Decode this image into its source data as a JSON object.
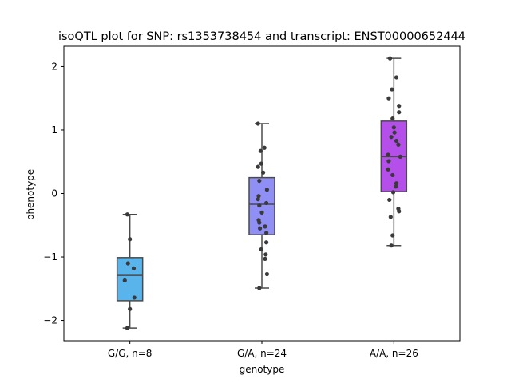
{
  "chart_data": {
    "type": "box",
    "title": "isoQTL plot for SNP: rs1353738454 and transcript: ENST00000652444",
    "xlabel": "genotype",
    "ylabel": "phenotype",
    "ylim": [
      -2.32,
      2.32
    ],
    "yticks": [
      -2,
      -1,
      0,
      1,
      2
    ],
    "ytick_labels": [
      "−2",
      "−1",
      "0",
      "1",
      "2"
    ],
    "grid": false,
    "groups": [
      {
        "label": "G/G, n=8",
        "color": "#5ab4ec",
        "box": {
          "whisker_low": -2.12,
          "q1": -1.69,
          "median": -1.29,
          "q3": -1.01,
          "whisker_high": -0.33
        },
        "points": [
          {
            "x": -0.2,
            "y": -0.33
          },
          {
            "x": 0.0,
            "y": -0.72
          },
          {
            "x": -0.15,
            "y": -1.1
          },
          {
            "x": 0.3,
            "y": -1.18
          },
          {
            "x": -0.4,
            "y": -1.37
          },
          {
            "x": 0.35,
            "y": -1.64
          },
          {
            "x": 0.0,
            "y": -1.82
          },
          {
            "x": -0.2,
            "y": -2.12
          }
        ]
      },
      {
        "label": "G/A, n=24",
        "color": "#8f8ff5",
        "box": {
          "whisker_low": -1.49,
          "q1": -0.65,
          "median": -0.17,
          "q3": 0.25,
          "whisker_high": 1.1
        },
        "points": [
          {
            "x": -0.3,
            "y": 1.1
          },
          {
            "x": 0.2,
            "y": 0.72
          },
          {
            "x": -0.1,
            "y": 0.67
          },
          {
            "x": -0.05,
            "y": 0.47
          },
          {
            "x": -0.3,
            "y": 0.42
          },
          {
            "x": 0.1,
            "y": 0.33
          },
          {
            "x": -0.2,
            "y": 0.2
          },
          {
            "x": 0.4,
            "y": 0.06
          },
          {
            "x": -0.25,
            "y": -0.04
          },
          {
            "x": -0.3,
            "y": -0.09
          },
          {
            "x": -0.2,
            "y": -0.19
          },
          {
            "x": 0.35,
            "y": -0.15
          },
          {
            "x": -0.25,
            "y": -0.42
          },
          {
            "x": -0.2,
            "y": -0.46
          },
          {
            "x": 0.25,
            "y": -0.52
          },
          {
            "x": -0.15,
            "y": -0.55
          },
          {
            "x": 0.35,
            "y": -0.62
          },
          {
            "x": 0.35,
            "y": -0.77
          },
          {
            "x": -0.05,
            "y": -0.88
          },
          {
            "x": 0.3,
            "y": -0.96
          },
          {
            "x": 0.25,
            "y": -1.03
          },
          {
            "x": 0.4,
            "y": -1.27
          },
          {
            "x": -0.2,
            "y": -1.49
          },
          {
            "x": 0.0,
            "y": -0.3
          }
        ]
      },
      {
        "label": "A/A, n=26",
        "color": "#b44fea",
        "box": {
          "whisker_low": -0.82,
          "q1": 0.03,
          "median": 0.58,
          "q3": 1.14,
          "whisker_high": 2.13
        },
        "points": [
          {
            "x": -0.3,
            "y": 2.13
          },
          {
            "x": 0.2,
            "y": 1.83
          },
          {
            "x": -0.15,
            "y": 1.64
          },
          {
            "x": -0.4,
            "y": 1.5
          },
          {
            "x": 0.4,
            "y": 1.38
          },
          {
            "x": 0.4,
            "y": 1.28
          },
          {
            "x": -0.1,
            "y": 1.18
          },
          {
            "x": 0.0,
            "y": 1.04
          },
          {
            "x": 0.05,
            "y": 0.96
          },
          {
            "x": -0.2,
            "y": 0.89
          },
          {
            "x": 0.2,
            "y": 0.83
          },
          {
            "x": 0.35,
            "y": 0.77
          },
          {
            "x": -0.45,
            "y": 0.61
          },
          {
            "x": 0.5,
            "y": 0.58
          },
          {
            "x": -0.4,
            "y": 0.51
          },
          {
            "x": -0.45,
            "y": 0.38
          },
          {
            "x": -0.1,
            "y": 0.29
          },
          {
            "x": 0.2,
            "y": 0.16
          },
          {
            "x": 0.15,
            "y": 0.11
          },
          {
            "x": -0.05,
            "y": 0.02
          },
          {
            "x": -0.35,
            "y": -0.1
          },
          {
            "x": 0.35,
            "y": -0.24
          },
          {
            "x": 0.4,
            "y": -0.28
          },
          {
            "x": -0.25,
            "y": -0.37
          },
          {
            "x": -0.1,
            "y": -0.66
          },
          {
            "x": -0.2,
            "y": -0.82
          }
        ]
      }
    ]
  }
}
